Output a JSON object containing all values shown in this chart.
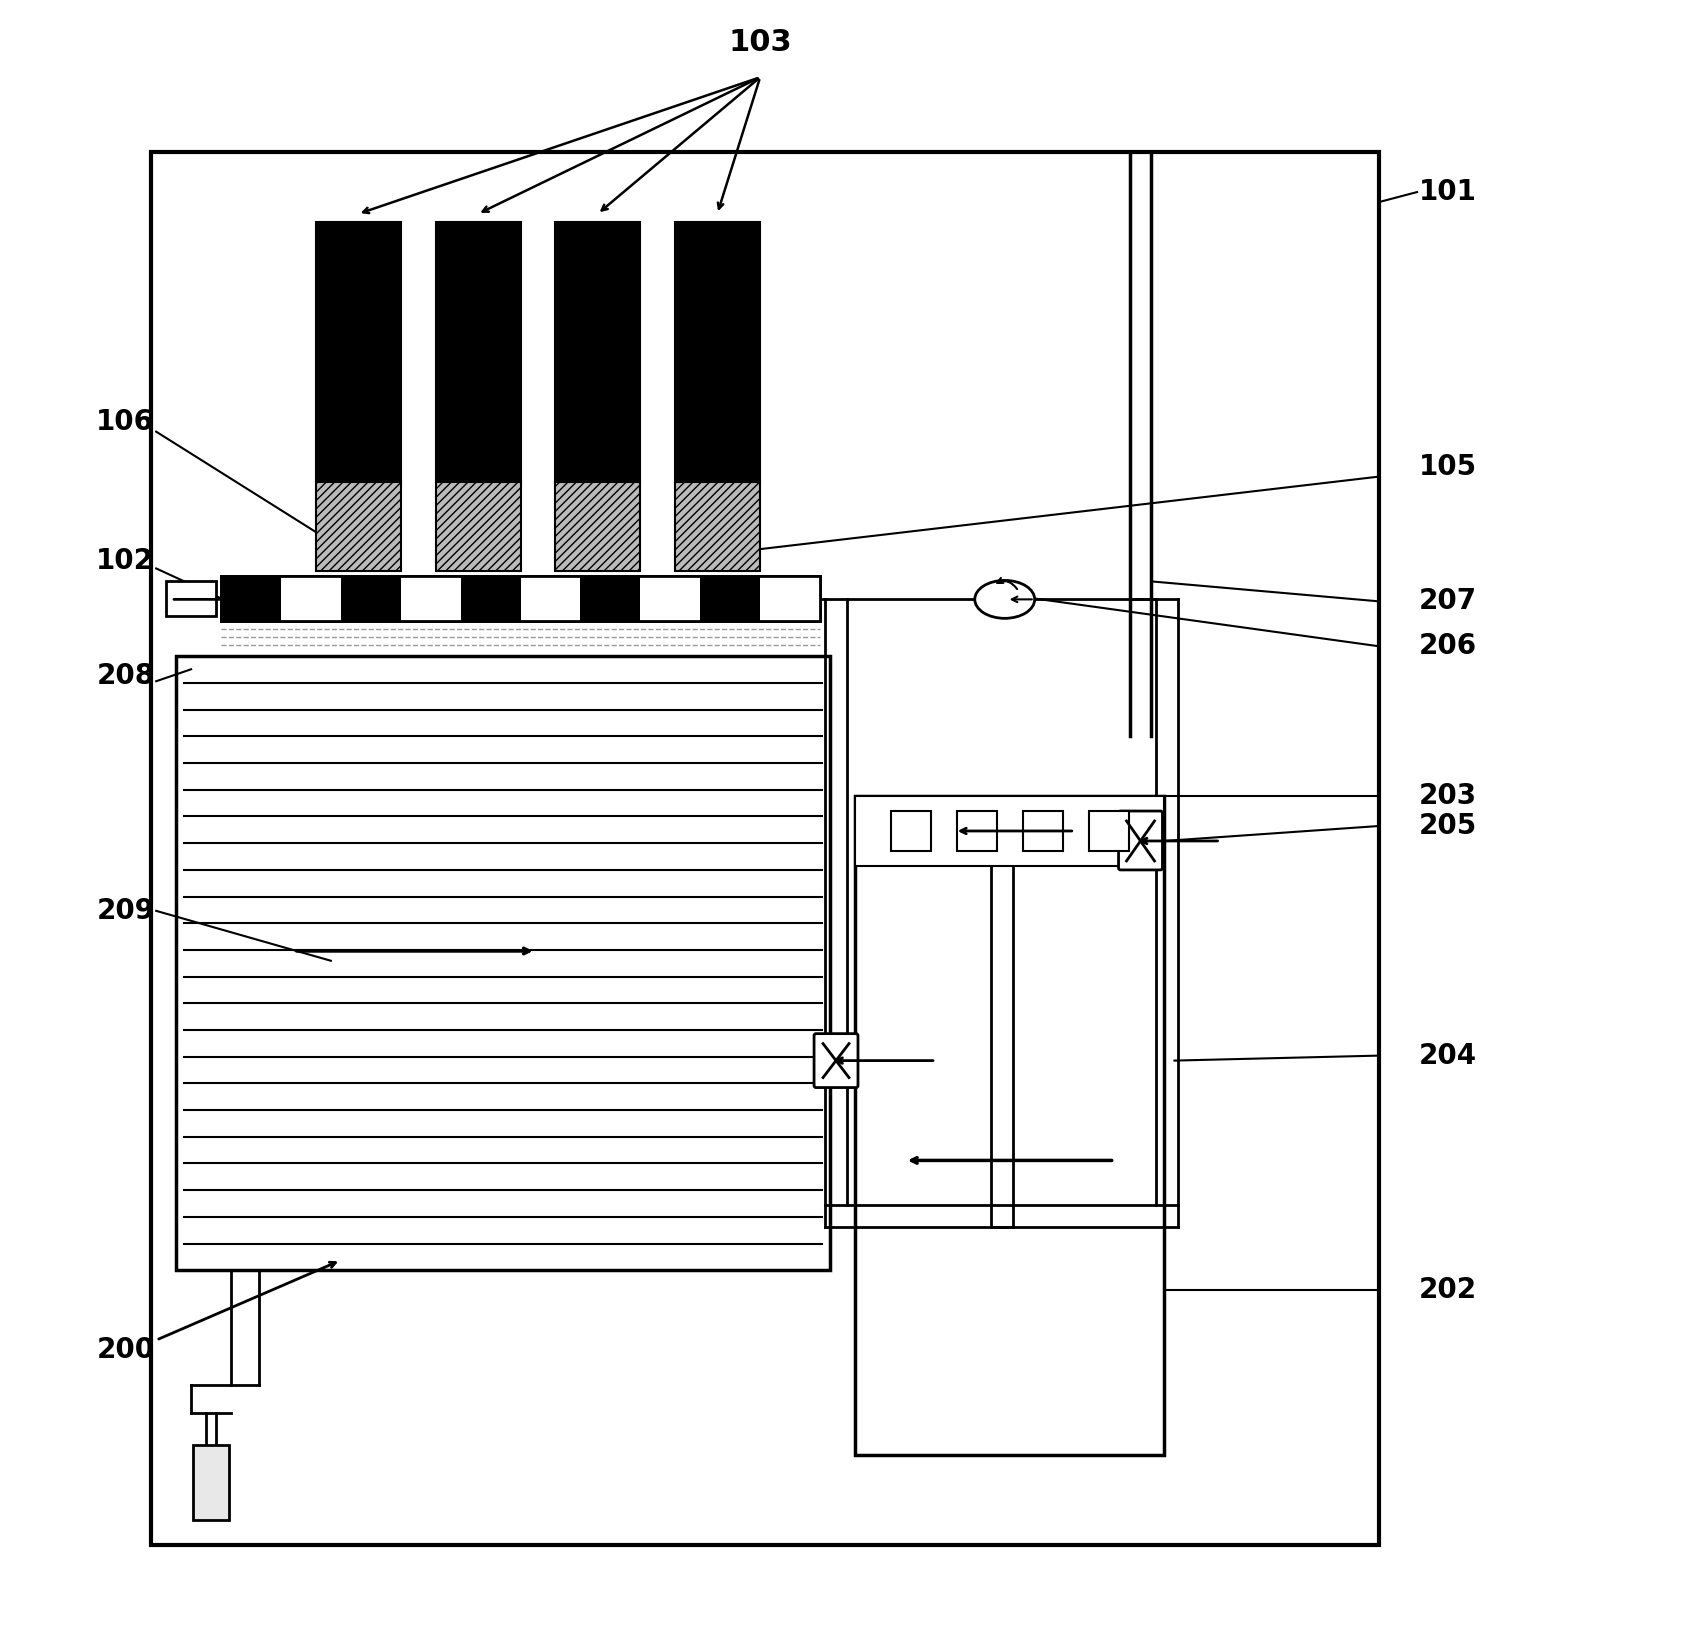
{
  "bg_color": "#ffffff",
  "black": "#000000",
  "lgray": "#bbbbbb",
  "dgray": "#666666",
  "label_fs": 20,
  "lw": 2.0
}
